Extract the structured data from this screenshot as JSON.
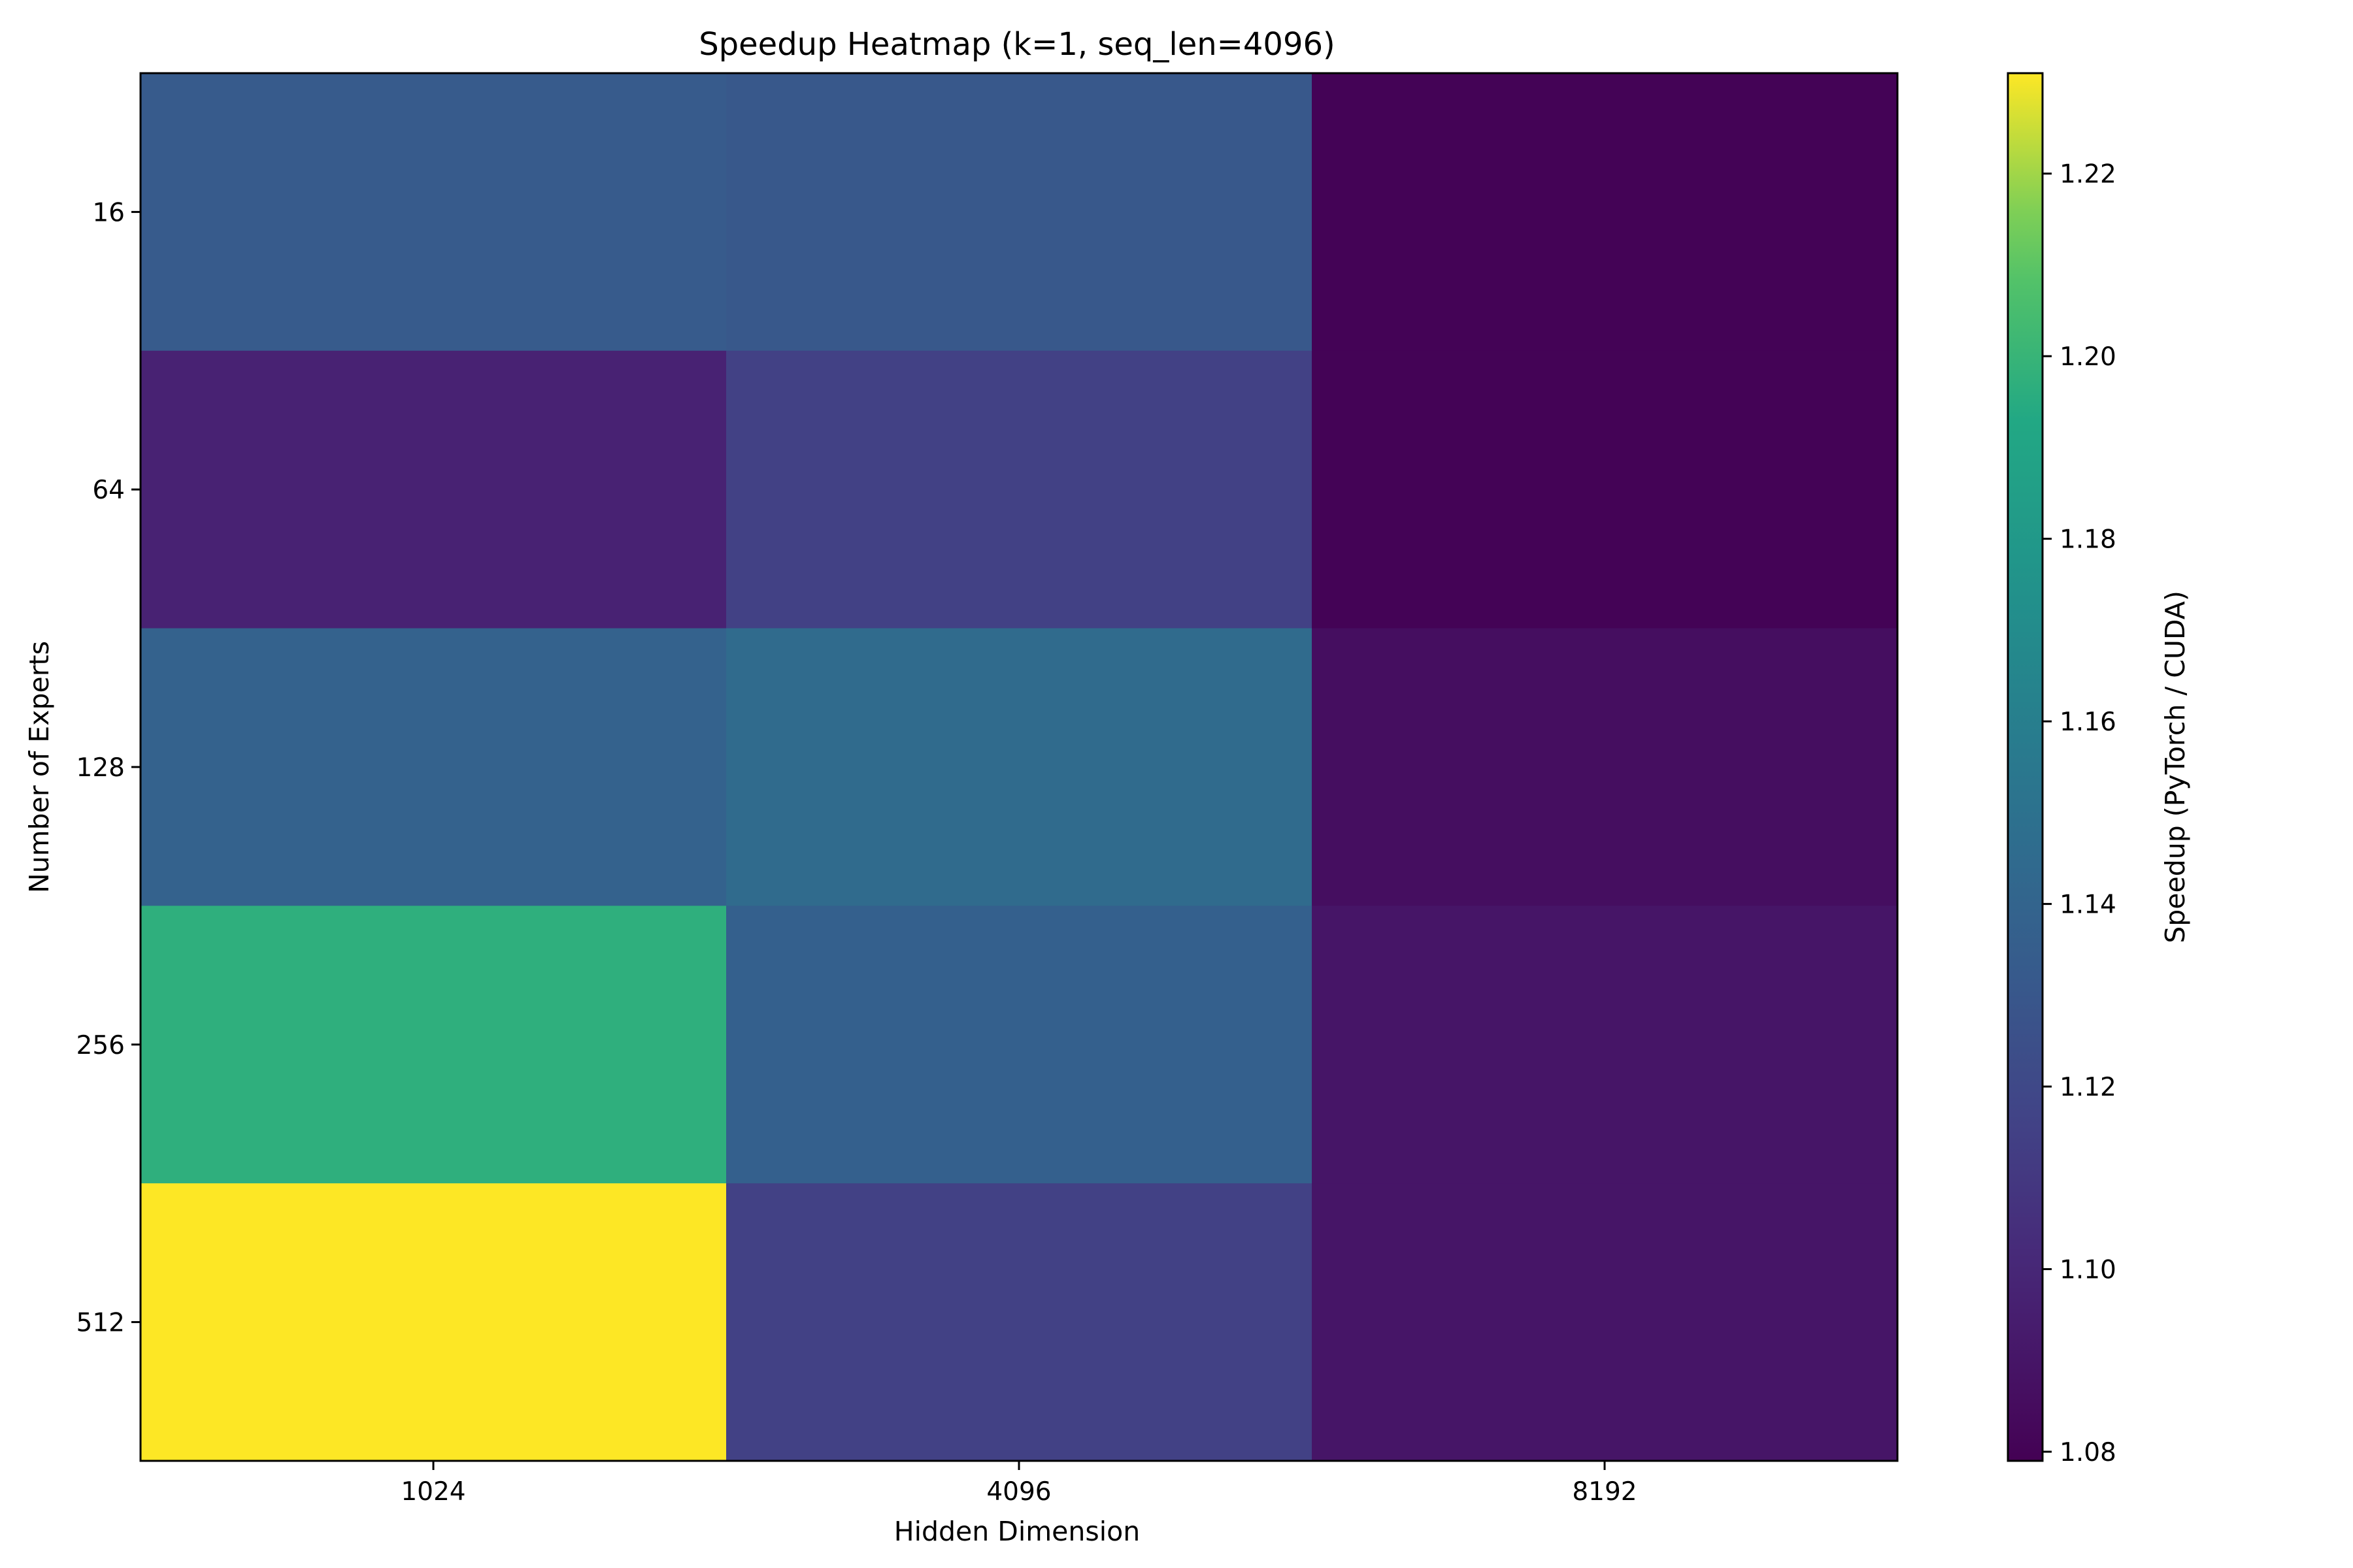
{
  "chart_data": {
    "type": "heatmap",
    "title": "Speedup Heatmap (k=1, seq_len=4096)",
    "xlabel": "Hidden Dimension",
    "ylabel": "Number of Experts",
    "x_categories": [
      "1024",
      "4096",
      "8192"
    ],
    "y_categories": [
      "16",
      "64",
      "128",
      "256",
      "512"
    ],
    "values": [
      [
        1.133,
        1.131,
        1.08
      ],
      [
        1.097,
        1.115,
        1.08
      ],
      [
        1.138,
        1.145,
        1.086
      ],
      [
        1.197,
        1.137,
        1.09
      ],
      [
        1.231,
        1.115,
        1.09
      ]
    ],
    "colormap": "viridis",
    "colorbar": {
      "label": "Speedup (PyTorch / CUDA)",
      "range": [
        1.079,
        1.231
      ],
      "ticks": [
        "1.08",
        "1.10",
        "1.12",
        "1.14",
        "1.16",
        "1.18",
        "1.20",
        "1.22"
      ]
    },
    "grid": false
  }
}
